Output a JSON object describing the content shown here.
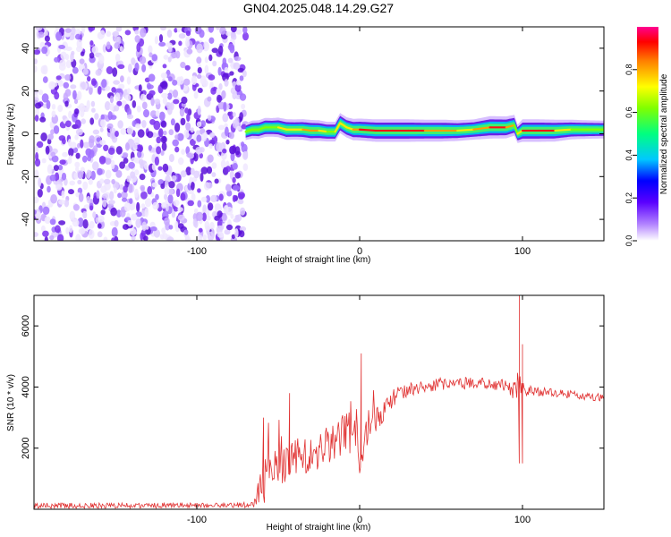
{
  "chart_data": [
    {
      "type": "heatmap",
      "title": "GN04.2025.048.14.29.G27",
      "xlabel": "Height of straight line (km)",
      "ylabel": "Frequency (Hz)",
      "xlim": [
        -200,
        150
      ],
      "ylim": [
        -50,
        50
      ],
      "xticks": [
        -100,
        0,
        100
      ],
      "yticks": [
        -40,
        -20,
        0,
        20,
        40
      ],
      "colorbar": {
        "label": "Normalized spectral amplitude",
        "range": [
          0,
          1
        ],
        "ticks": [
          "0.0",
          "0.2",
          "0.4",
          "0.6",
          "0.8"
        ]
      },
      "noise_region": {
        "x_from": -200,
        "x_to": -70
      },
      "ridge": {
        "x": [
          -70,
          -66,
          -62,
          -58,
          -54,
          -50,
          -45,
          -40,
          -35,
          -30,
          -25,
          -20,
          -15,
          -12,
          -8,
          -4,
          0,
          10,
          20,
          30,
          40,
          50,
          60,
          70,
          80,
          90,
          95,
          97,
          100,
          110,
          120,
          130,
          140,
          150
        ],
        "freq": [
          1,
          2,
          2,
          3,
          3,
          3,
          2,
          2,
          2,
          1.5,
          1.5,
          1,
          1,
          5,
          3,
          2,
          2,
          1.5,
          1.5,
          1.5,
          1.5,
          1.5,
          1.5,
          2,
          3,
          3,
          4,
          0,
          1.5,
          1.5,
          1.5,
          2,
          2,
          2
        ],
        "amp": [
          0.45,
          0.55,
          0.6,
          0.65,
          0.6,
          0.7,
          0.8,
          0.75,
          0.8,
          0.85,
          0.8,
          0.7,
          0.7,
          0.75,
          0.75,
          0.85,
          0.9,
          0.95,
          0.95,
          0.95,
          0.9,
          0.9,
          0.8,
          0.75,
          0.95,
          0.9,
          0.8,
          0.6,
          0.95,
          0.95,
          0.9,
          0.7,
          0.6,
          0.55
        ]
      }
    },
    {
      "type": "line",
      "xlabel": "Height of straight line (km)",
      "ylabel": "SNR (10 * v/v)",
      "xlim": [
        -200,
        150
      ],
      "ylim": [
        0,
        7000
      ],
      "xticks": [
        -100,
        0,
        100
      ],
      "yticks": [
        2000,
        4000,
        6000
      ],
      "series": [
        {
          "color": "#e03030",
          "x": [
            -200,
            -150,
            -100,
            -80,
            -65,
            -60,
            -58,
            -55,
            -50,
            -45,
            -40,
            -35,
            -30,
            -25,
            -20,
            -15,
            -10,
            -5,
            -2,
            0,
            5,
            10,
            15,
            20,
            25,
            30,
            40,
            50,
            60,
            70,
            80,
            90,
            95,
            97,
            98,
            100,
            102,
            110,
            120,
            130,
            140,
            150
          ],
          "y": [
            120,
            120,
            130,
            130,
            140,
            600,
            1000,
            1400,
            1200,
            1600,
            1700,
            1800,
            1700,
            1900,
            2100,
            2200,
            2400,
            2500,
            2500,
            1400,
            2700,
            3000,
            3300,
            3600,
            3800,
            3900,
            4000,
            4100,
            4100,
            4150,
            4100,
            4050,
            3900,
            4000,
            4000,
            4000,
            3900,
            3850,
            3800,
            3750,
            3700,
            3650
          ],
          "noise": [
            90,
            90,
            90,
            90,
            90,
            900,
            900,
            800,
            700,
            700,
            600,
            600,
            600,
            600,
            600,
            600,
            700,
            700,
            900,
            300,
            600,
            500,
            400,
            300,
            250,
            250,
            200,
            200,
            200,
            180,
            180,
            200,
            350,
            500,
            400,
            250,
            200,
            150,
            140,
            130,
            130,
            130
          ]
        }
      ],
      "peaks": [
        {
          "x": -59,
          "y": 3000
        },
        {
          "x": -43,
          "y": 3800
        },
        {
          "x": 1,
          "y": 5100
        },
        {
          "x": 98,
          "y": 7000
        },
        {
          "x": 98,
          "y": 1500
        },
        {
          "x": 100,
          "y": 5400
        },
        {
          "x": 100,
          "y": 1500
        }
      ]
    }
  ]
}
